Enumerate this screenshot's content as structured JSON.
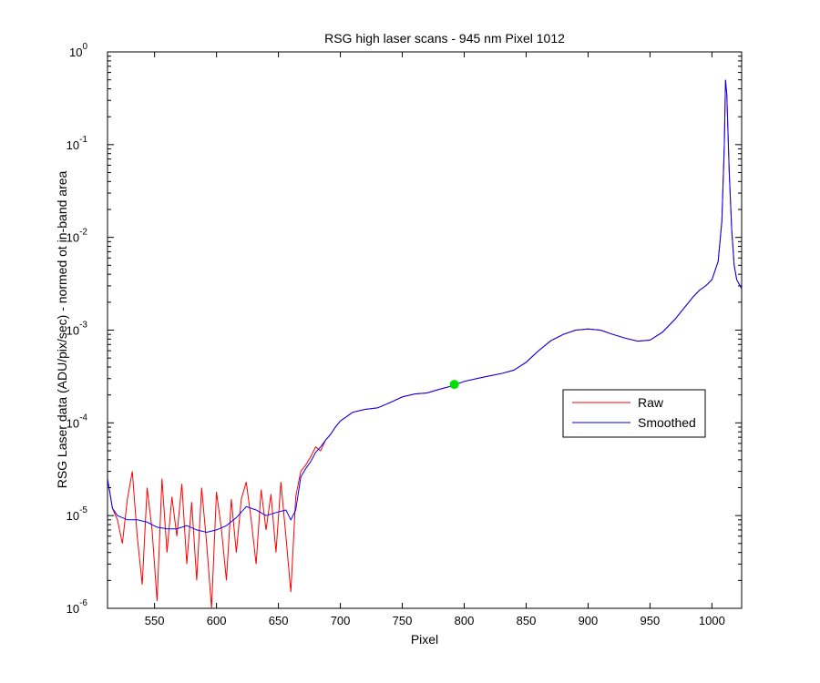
{
  "chart_data": {
    "type": "line",
    "title": "RSG high laser scans  - 945 nm    Pixel 1012",
    "xlabel": "Pixel",
    "ylabel": "RSG Laser data (ADU/pix/sec) - normed ot in-band area",
    "xlim": [
      512,
      1024
    ],
    "ylim": [
      1e-06,
      1
    ],
    "yscale": "log",
    "grid": false,
    "legend_position": "right",
    "x_ticks": [
      "550",
      "600",
      "650",
      "700",
      "750",
      "800",
      "850",
      "900",
      "950",
      "1000"
    ],
    "y_ticks": [
      {
        "base": "10",
        "exp": "-6"
      },
      {
        "base": "10",
        "exp": "-5"
      },
      {
        "base": "10",
        "exp": "-4"
      },
      {
        "base": "10",
        "exp": "-3"
      },
      {
        "base": "10",
        "exp": "-2"
      },
      {
        "base": "10",
        "exp": "-1"
      },
      {
        "base": "10",
        "exp": "0"
      }
    ],
    "series": [
      {
        "name": "Raw",
        "color": "#ff0000",
        "x": [
          512,
          516,
          520,
          524,
          528,
          532,
          536,
          540,
          544,
          548,
          552,
          556,
          560,
          564,
          568,
          572,
          576,
          580,
          584,
          588,
          592,
          596,
          600,
          604,
          608,
          612,
          616,
          620,
          624,
          628,
          632,
          636,
          640,
          644,
          648,
          652,
          656,
          660,
          664,
          668,
          672,
          676,
          680,
          684,
          688,
          692,
          696,
          700,
          710,
          720,
          730,
          740,
          750,
          760,
          770,
          780,
          790,
          800,
          810,
          820,
          830,
          840,
          850,
          860,
          870,
          880,
          890,
          900,
          910,
          920,
          930,
          940,
          950,
          960,
          970,
          980,
          985,
          990,
          995,
          1000,
          1005,
          1008,
          1010,
          1011,
          1012,
          1014,
          1016,
          1018,
          1020,
          1024
        ],
        "values": [
          2.5e-05,
          1.2e-05,
          9e-06,
          5e-06,
          1.5e-05,
          3e-05,
          6e-06,
          1.8e-06,
          2e-05,
          7e-06,
          1.2e-06,
          2.5e-05,
          4e-06,
          1.6e-05,
          6e-06,
          2.2e-05,
          3e-06,
          1.4e-05,
          2e-06,
          2e-05,
          5e-06,
          1e-06,
          1.8e-05,
          7e-06,
          2e-06,
          1.5e-05,
          4e-06,
          1.5e-05,
          2.3e-05,
          9e-06,
          3e-06,
          1.9e-05,
          7e-06,
          1.7e-05,
          4e-06,
          2.3e-05,
          6e-06,
          1.5e-06,
          1.6e-05,
          3e-05,
          3.5e-05,
          4.3e-05,
          5.5e-05,
          5e-05,
          6.5e-05,
          7.5e-05,
          9e-05,
          0.000105,
          0.00013,
          0.00014,
          0.000145,
          0.000165,
          0.00019,
          0.000205,
          0.00021,
          0.00023,
          0.00025,
          0.00028,
          0.0003,
          0.00032,
          0.00034,
          0.00037,
          0.00045,
          0.0006,
          0.00077,
          0.0009,
          0.001,
          0.00103,
          0.001,
          0.0009,
          0.00082,
          0.00076,
          0.00078,
          0.00095,
          0.0013,
          0.0019,
          0.0023,
          0.0027,
          0.003,
          0.0035,
          0.0055,
          0.015,
          0.1,
          0.5,
          0.35,
          0.05,
          0.012,
          0.005,
          0.0035,
          0.0028
        ]
      },
      {
        "name": "Smoothed",
        "color": "#0000ff",
        "x": [
          512,
          516,
          520,
          524,
          528,
          536,
          544,
          552,
          560,
          568,
          576,
          584,
          592,
          600,
          608,
          616,
          624,
          632,
          640,
          648,
          656,
          660,
          664,
          668,
          672,
          676,
          680,
          684,
          688,
          692,
          696,
          700,
          710,
          720,
          730,
          740,
          750,
          760,
          770,
          780,
          790,
          800,
          810,
          820,
          830,
          840,
          850,
          860,
          870,
          880,
          890,
          900,
          910,
          920,
          930,
          940,
          950,
          960,
          970,
          980,
          985,
          990,
          995,
          1000,
          1005,
          1008,
          1010,
          1011,
          1012,
          1014,
          1016,
          1018,
          1020,
          1024
        ],
        "values": [
          2.5e-05,
          1.2e-05,
          1e-05,
          9.5e-06,
          9e-06,
          9e-06,
          8.5e-06,
          7.5e-06,
          7.2e-06,
          7.2e-06,
          7.8e-06,
          7e-06,
          6.6e-06,
          7e-06,
          7.8e-06,
          9.5e-06,
          1.25e-05,
          1.15e-05,
          1e-05,
          1.08e-05,
          1.15e-05,
          9e-06,
          1.15e-05,
          2.6e-05,
          3.2e-05,
          3.8e-05,
          4.8e-05,
          5.5e-05,
          6.5e-05,
          7.5e-05,
          9e-05,
          0.000105,
          0.00013,
          0.00014,
          0.000145,
          0.000165,
          0.00019,
          0.000205,
          0.00021,
          0.00023,
          0.00025,
          0.00028,
          0.0003,
          0.00032,
          0.00034,
          0.00037,
          0.00045,
          0.0006,
          0.00077,
          0.0009,
          0.001,
          0.00103,
          0.001,
          0.0009,
          0.00082,
          0.00076,
          0.00078,
          0.00095,
          0.0013,
          0.0019,
          0.0023,
          0.0027,
          0.003,
          0.0035,
          0.0055,
          0.015,
          0.1,
          0.5,
          0.35,
          0.05,
          0.012,
          0.005,
          0.0035,
          0.0028
        ]
      }
    ],
    "annotations": [
      {
        "type": "marker",
        "x": 792,
        "y": 0.00026,
        "color": "#00e000"
      }
    ]
  }
}
